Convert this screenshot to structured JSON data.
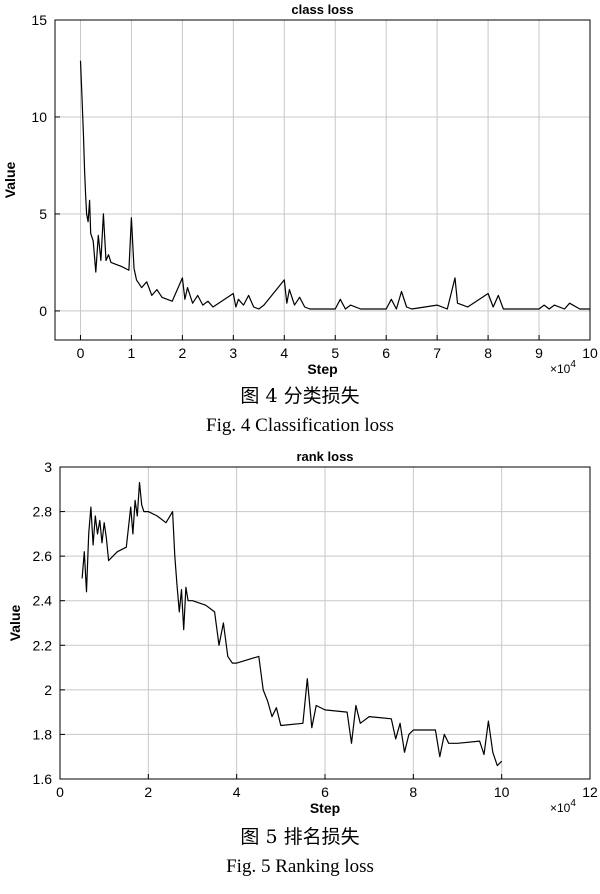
{
  "captions": {
    "fig4_cn": "图 4 分类损失",
    "fig4_en": "Fig. 4 Classification loss",
    "fig5_cn": "图 5 排名损失",
    "fig5_en": "Fig. 5 Ranking loss"
  },
  "trailing_text": "",
  "chart_data": [
    {
      "type": "line",
      "title": "class loss",
      "xlabel": "Step",
      "ylabel": "Value",
      "x_multiplier": "×10^4",
      "x_multiplier_base": "×10",
      "x_multiplier_exp": "4",
      "xlim": [
        -0.5,
        10
      ],
      "ylim": [
        -1.5,
        15
      ],
      "xticks": [
        0,
        1,
        2,
        3,
        4,
        5,
        6,
        7,
        8,
        9,
        10
      ],
      "yticks": [
        0,
        5,
        10,
        15
      ],
      "grid": true,
      "line_color": "#000000",
      "series": [
        {
          "x": [
            0,
            0.03,
            0.06,
            0.08,
            0.1,
            0.12,
            0.15,
            0.18,
            0.2,
            0.25,
            0.3,
            0.35,
            0.4,
            0.45,
            0.5,
            0.55,
            0.6,
            0.7,
            0.8,
            0.95,
            1.0,
            1.05,
            1.1,
            1.2,
            1.3,
            1.4,
            1.5,
            1.6,
            1.7,
            1.8,
            2.0,
            2.05,
            2.1,
            2.2,
            2.3,
            2.4,
            2.5,
            2.6,
            3.0,
            3.05,
            3.1,
            3.2,
            3.3,
            3.4,
            3.5,
            3.6,
            4.0,
            4.05,
            4.1,
            4.2,
            4.3,
            4.4,
            4.5,
            5.0,
            5.1,
            5.2,
            5.3,
            5.5,
            6.0,
            6.1,
            6.2,
            6.3,
            6.4,
            6.5,
            7.0,
            7.2,
            7.35,
            7.4,
            7.5,
            7.6,
            8.0,
            8.1,
            8.2,
            8.3,
            8.5,
            9.0,
            9.1,
            9.2,
            9.3,
            9.5,
            9.6,
            9.8,
            10.0
          ],
          "y": [
            12.9,
            11.0,
            9.0,
            7.2,
            6.0,
            5.0,
            4.6,
            5.7,
            4.0,
            3.6,
            2.0,
            3.9,
            2.6,
            5.0,
            2.6,
            2.9,
            2.5,
            2.4,
            2.3,
            2.1,
            4.8,
            2.2,
            1.6,
            1.2,
            1.5,
            0.8,
            1.1,
            0.7,
            0.6,
            0.5,
            1.7,
            0.6,
            1.2,
            0.4,
            0.8,
            0.3,
            0.5,
            0.2,
            0.9,
            0.2,
            0.6,
            0.3,
            0.8,
            0.2,
            0.1,
            0.3,
            1.6,
            0.4,
            1.1,
            0.3,
            0.7,
            0.2,
            0.1,
            0.1,
            0.6,
            0.1,
            0.3,
            0.1,
            0.1,
            0.6,
            0.1,
            1.0,
            0.2,
            0.1,
            0.3,
            0.1,
            1.7,
            0.4,
            0.3,
            0.2,
            0.9,
            0.2,
            0.8,
            0.1,
            0.1,
            0.1,
            0.3,
            0.1,
            0.3,
            0.1,
            0.4,
            0.1,
            0.1
          ]
        }
      ]
    },
    {
      "type": "line",
      "title": "rank loss",
      "xlabel": "Step",
      "ylabel": "Value",
      "x_multiplier": "×10^4",
      "x_multiplier_base": "×10",
      "x_multiplier_exp": "4",
      "xlim": [
        0,
        12
      ],
      "ylim": [
        1.6,
        3.0
      ],
      "xticks": [
        0,
        2,
        4,
        6,
        8,
        10,
        12
      ],
      "yticks": [
        1.6,
        1.8,
        2,
        2.2,
        2.4,
        2.6,
        2.8,
        3
      ],
      "ytick_labels": [
        "1.6",
        "1.8",
        "2",
        "2.2",
        "2.4",
        "2.6",
        "2.8",
        "3"
      ],
      "grid": true,
      "line_color": "#000000",
      "series": [
        {
          "x": [
            0.5,
            0.55,
            0.6,
            0.65,
            0.7,
            0.75,
            0.8,
            0.85,
            0.9,
            0.95,
            1.0,
            1.05,
            1.1,
            1.2,
            1.3,
            1.5,
            1.6,
            1.65,
            1.7,
            1.75,
            1.8,
            1.85,
            1.9,
            2.0,
            2.2,
            2.4,
            2.55,
            2.6,
            2.65,
            2.7,
            2.75,
            2.8,
            2.85,
            2.9,
            3.0,
            3.3,
            3.5,
            3.6,
            3.7,
            3.8,
            3.9,
            4.0,
            4.5,
            4.6,
            4.7,
            4.8,
            4.9,
            5.0,
            5.5,
            5.6,
            5.7,
            5.8,
            6.0,
            6.5,
            6.6,
            6.7,
            6.8,
            7.0,
            7.5,
            7.6,
            7.7,
            7.8,
            7.9,
            8.0,
            8.5,
            8.6,
            8.7,
            8.8,
            9.0,
            9.5,
            9.6,
            9.7,
            9.8,
            9.9,
            10.0
          ],
          "y": [
            2.5,
            2.62,
            2.44,
            2.7,
            2.82,
            2.65,
            2.78,
            2.7,
            2.76,
            2.66,
            2.75,
            2.68,
            2.58,
            2.6,
            2.62,
            2.64,
            2.82,
            2.7,
            2.85,
            2.78,
            2.93,
            2.83,
            2.8,
            2.8,
            2.78,
            2.75,
            2.8,
            2.6,
            2.47,
            2.35,
            2.45,
            2.27,
            2.46,
            2.4,
            2.4,
            2.38,
            2.35,
            2.2,
            2.3,
            2.15,
            2.12,
            2.12,
            2.15,
            2.0,
            1.95,
            1.88,
            1.92,
            1.84,
            1.85,
            2.05,
            1.83,
            1.93,
            1.91,
            1.9,
            1.76,
            1.93,
            1.85,
            1.88,
            1.87,
            1.78,
            1.85,
            1.72,
            1.8,
            1.82,
            1.82,
            1.7,
            1.8,
            1.76,
            1.76,
            1.77,
            1.71,
            1.86,
            1.72,
            1.66,
            1.68
          ]
        }
      ]
    }
  ]
}
